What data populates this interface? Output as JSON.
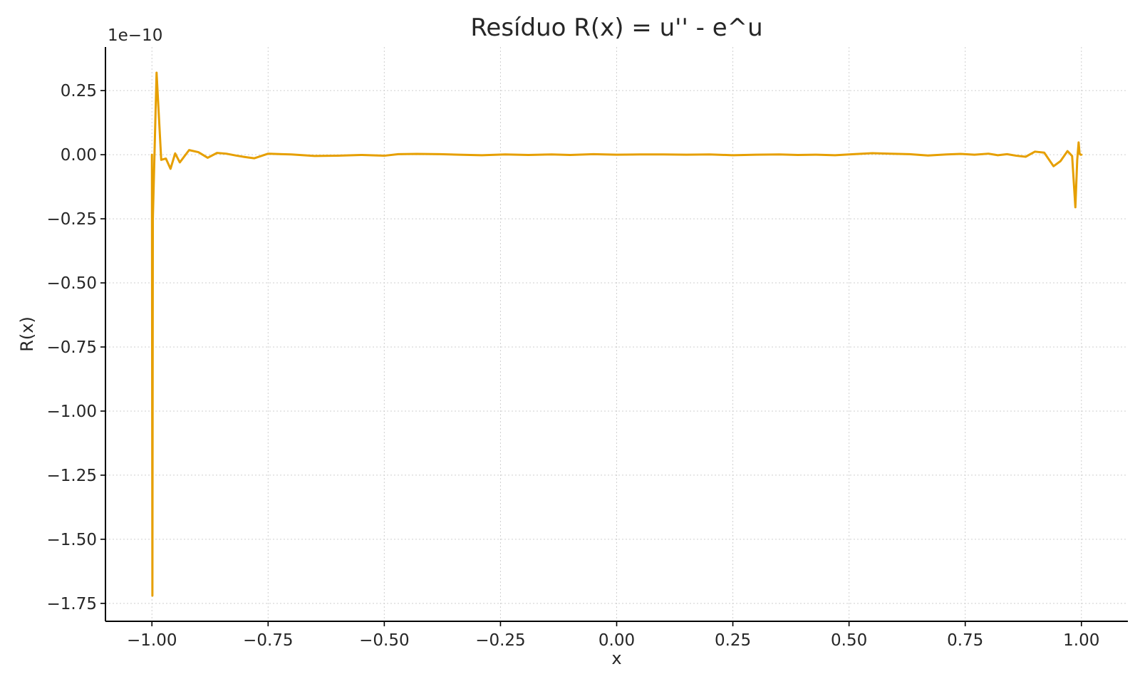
{
  "chart_data": {
    "type": "line",
    "title": "Resíduo R(x) = u'' - e^u",
    "xlabel": "x",
    "ylabel": "R(x)",
    "y_offset_label": "1e−10",
    "y_scale_factor": 1e-10,
    "xlim": [
      -1.1,
      1.1
    ],
    "ylim": [
      -1.82,
      0.42
    ],
    "grid": true,
    "x_ticks": [
      {
        "value": -1.0,
        "label": "−1.00"
      },
      {
        "value": -0.75,
        "label": "−0.75"
      },
      {
        "value": -0.5,
        "label": "−0.50"
      },
      {
        "value": -0.25,
        "label": "−0.25"
      },
      {
        "value": 0.0,
        "label": "0.00"
      },
      {
        "value": 0.25,
        "label": "0.25"
      },
      {
        "value": 0.5,
        "label": "0.50"
      },
      {
        "value": 0.75,
        "label": "0.75"
      },
      {
        "value": 1.0,
        "label": "1.00"
      }
    ],
    "y_ticks": [
      {
        "value": 0.25,
        "label": "0.25"
      },
      {
        "value": 0.0,
        "label": "0.00"
      },
      {
        "value": -0.25,
        "label": "−0.25"
      },
      {
        "value": -0.5,
        "label": "−0.50"
      },
      {
        "value": -0.75,
        "label": "−0.75"
      },
      {
        "value": -1.0,
        "label": "−1.00"
      },
      {
        "value": -1.25,
        "label": "−1.25"
      },
      {
        "value": -1.5,
        "label": "−1.50"
      },
      {
        "value": -1.75,
        "label": "−1.75"
      }
    ],
    "series": [
      {
        "color": "#E69F00",
        "x": [
          -1.0,
          -0.999,
          -0.998,
          -0.99,
          -0.98,
          -0.97,
          -0.96,
          -0.95,
          -0.94,
          -0.92,
          -0.9,
          -0.88,
          -0.86,
          -0.84,
          -0.82,
          -0.8,
          -0.78,
          -0.75,
          -0.72,
          -0.7,
          -0.65,
          -0.6,
          -0.55,
          -0.5,
          -0.47,
          -0.43,
          -0.38,
          -0.34,
          -0.29,
          -0.24,
          -0.19,
          -0.14,
          -0.1,
          -0.05,
          0.0,
          0.05,
          0.1,
          0.15,
          0.2,
          0.25,
          0.3,
          0.35,
          0.39,
          0.43,
          0.47,
          0.51,
          0.55,
          0.59,
          0.63,
          0.67,
          0.71,
          0.74,
          0.77,
          0.8,
          0.82,
          0.84,
          0.86,
          0.88,
          0.9,
          0.92,
          0.94,
          0.955,
          0.97,
          0.98,
          0.987,
          0.991,
          0.994,
          0.996,
          0.998,
          1.0
        ],
        "y": [
          0.0,
          -1.72,
          -0.25,
          0.32,
          -0.02,
          -0.015,
          -0.055,
          0.005,
          -0.03,
          0.018,
          0.01,
          -0.012,
          0.007,
          0.004,
          -0.003,
          -0.009,
          -0.014,
          0.004,
          0.002,
          0.001,
          -0.005,
          -0.004,
          -0.001,
          -0.004,
          0.002,
          0.003,
          0.002,
          0.0,
          -0.002,
          0.001,
          -0.001,
          0.001,
          -0.001,
          0.002,
          0.0,
          0.001,
          0.001,
          0.0,
          0.001,
          -0.002,
          0.0,
          0.001,
          -0.001,
          0.0,
          -0.002,
          0.002,
          0.006,
          0.004,
          0.002,
          -0.003,
          0.001,
          0.003,
          0.0,
          0.004,
          -0.002,
          0.002,
          -0.004,
          -0.008,
          0.012,
          0.008,
          -0.045,
          -0.025,
          0.014,
          -0.005,
          -0.205,
          -0.02,
          0.048,
          0.005,
          0.0,
          0.0
        ]
      }
    ]
  }
}
